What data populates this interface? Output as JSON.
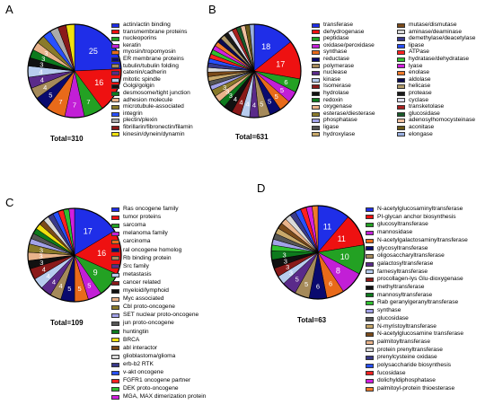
{
  "chart_data": [
    {
      "type": "pie",
      "panel": "A",
      "total_label": "Total=310",
      "start_deg": 90,
      "slices": [
        {
          "name": "actin/actin binding",
          "value": 25,
          "color": "#1f2ee8",
          "label": "25"
        },
        {
          "name": "transmembrane proteins",
          "value": 16,
          "color": "#ee1111",
          "label": "16"
        },
        {
          "name": "nucleoporins",
          "value": 7,
          "color": "#23a123",
          "label": "7"
        },
        {
          "name": "keratin",
          "value": 7,
          "color": "#c21fd6",
          "label": "7"
        },
        {
          "name": "myosin/tropomyosin",
          "value": 7,
          "color": "#e86a1a",
          "label": "7"
        },
        {
          "name": "ER membrane proteins",
          "value": 5,
          "color": "#0a0a6e",
          "label": "5"
        },
        {
          "name": "tubulin/tubulin folding",
          "value": 4,
          "color": "#a58a5a",
          "label": "4"
        },
        {
          "name": "catenin/cadherin",
          "value": 4,
          "color": "#5a2a8a",
          "label": "4"
        },
        {
          "name": "mitotic spindle",
          "value": 4,
          "color": "#b7ccee",
          "label": "4"
        },
        {
          "name": "Golgi/golgin",
          "value": 3,
          "color": "#111111",
          "label": "3"
        },
        {
          "name": "desmosome/tight junction",
          "value": 3,
          "color": "#0d7a1d",
          "label": "3"
        },
        {
          "name": "adhesion molecule",
          "value": 3,
          "color": "#e9b38a",
          "label": "3"
        },
        {
          "name": "microtubule-associated",
          "value": 3,
          "color": "#8a7a2a",
          "label": ""
        },
        {
          "name": "integrin",
          "value": 3,
          "color": "#2850ff",
          "label": ""
        },
        {
          "name": "plectin/plexin",
          "value": 3,
          "color": "#aaaaaa",
          "label": ""
        },
        {
          "name": "fibrillarin/fibronectin/filamin",
          "value": 3,
          "color": "#8a1a1a",
          "label": ""
        },
        {
          "name": "kinesin/dynein/dynamin",
          "value": 3,
          "color": "#f0e010",
          "label": ""
        }
      ]
    },
    {
      "type": "pie",
      "panel": "B",
      "total_label": "Total=631",
      "start_deg": 90,
      "slices": [
        {
          "name": "transferase",
          "value": 18,
          "color": "#1f2ee8",
          "label": "18"
        },
        {
          "name": "dehydrogenase",
          "value": 17,
          "color": "#ee1111",
          "label": "17"
        },
        {
          "name": "peptidase",
          "value": 6,
          "color": "#23a123",
          "label": "6"
        },
        {
          "name": "oxidase/peroxidase",
          "value": 5,
          "color": "#c21fd6",
          "label": "5"
        },
        {
          "name": "synthase",
          "value": 5,
          "color": "#e86a1a",
          "label": "5"
        },
        {
          "name": "reductase",
          "value": 5,
          "color": "#0a0a6e",
          "label": "5"
        },
        {
          "name": "polymerase",
          "value": 5,
          "color": "#a58a5a",
          "label": "5"
        },
        {
          "name": "nuclease",
          "value": 4,
          "color": "#5a2a8a",
          "label": "4"
        },
        {
          "name": "kinase",
          "value": 4,
          "color": "#b7ccee",
          "label": "4"
        },
        {
          "name": "Isomerase",
          "value": 4,
          "color": "#8a1a1a",
          "label": "4"
        },
        {
          "name": "hydrolase",
          "value": 4,
          "color": "#111111",
          "label": "4"
        },
        {
          "name": "redoxin",
          "value": 3,
          "color": "#0d7a1d",
          "label": "3"
        },
        {
          "name": "oxygenase",
          "value": 3,
          "color": "#e9b38a",
          "label": "3"
        },
        {
          "name": "esterase/diesterase",
          "value": 3,
          "color": "#8a7a2a",
          "label": "3"
        },
        {
          "name": "phosphatase",
          "value": 2,
          "color": "#a2a2e8",
          "label": ""
        },
        {
          "name": "ligase",
          "value": 2,
          "color": "#555555",
          "label": ""
        },
        {
          "name": "hydroxylase",
          "value": 2,
          "color": "#c8a86a",
          "label": ""
        },
        {
          "name": "mutase/dismutase",
          "value": 2,
          "color": "#7a4a1a",
          "label": ""
        },
        {
          "name": "aminase/deaminase",
          "value": 2,
          "color": "#d9d9d9",
          "label": ""
        },
        {
          "name": "demethylase/deacetylase",
          "value": 2,
          "color": "#3a3a8a",
          "label": ""
        },
        {
          "name": "lipase",
          "value": 2,
          "color": "#2850ff",
          "label": ""
        },
        {
          "name": "ATPase",
          "value": 2,
          "color": "#ff2020",
          "label": ""
        },
        {
          "name": "hydratase/dehydratase",
          "value": 2,
          "color": "#30c030",
          "label": ""
        },
        {
          "name": "lyase",
          "value": 2,
          "color": "#d21fe0",
          "label": ""
        },
        {
          "name": "enolase",
          "value": 2,
          "color": "#f07a2a",
          "label": ""
        },
        {
          "name": "aldolase",
          "value": 2,
          "color": "#0a0a50",
          "label": ""
        },
        {
          "name": "helicase",
          "value": 2,
          "color": "#b09a6a",
          "label": ""
        },
        {
          "name": "protease",
          "value": 2,
          "color": "#1a1a1a",
          "label": ""
        },
        {
          "name": "cyclase",
          "value": 2,
          "color": "#e0e0f0",
          "label": ""
        },
        {
          "name": "transketolase",
          "value": 2,
          "color": "#aa2020",
          "label": ""
        },
        {
          "name": "glucosidase",
          "value": 2,
          "color": "#1a5a2a",
          "label": ""
        },
        {
          "name": "adenosylhomocysteinase",
          "value": 2,
          "color": "#f0c0a0",
          "label": ""
        },
        {
          "name": "aconitase",
          "value": 2,
          "color": "#6a5a1a",
          "label": ""
        },
        {
          "name": "elongase",
          "value": 2,
          "color": "#9ab0e0",
          "label": ""
        }
      ]
    },
    {
      "type": "pie",
      "panel": "C",
      "total_label": "Total=109",
      "start_deg": 90,
      "slices": [
        {
          "name": "Ras oncogene family",
          "value": 17,
          "color": "#1f2ee8",
          "label": "17"
        },
        {
          "name": "tumor proteins",
          "value": 16,
          "color": "#ee1111",
          "label": "16"
        },
        {
          "name": "sarcoma",
          "value": 9,
          "color": "#23a123",
          "label": "9"
        },
        {
          "name": "melanoma family",
          "value": 5,
          "color": "#c21fd6",
          "label": "5"
        },
        {
          "name": "carcinoma",
          "value": 5,
          "color": "#e86a1a",
          "label": "5"
        },
        {
          "name": "ral oncogene homolog",
          "value": 5,
          "color": "#0a0a6e",
          "label": "5"
        },
        {
          "name": "Rb binding protein",
          "value": 4,
          "color": "#a58a5a",
          "label": "4"
        },
        {
          "name": "Src family",
          "value": 4,
          "color": "#5a2a8a",
          "label": "4"
        },
        {
          "name": "metastasis",
          "value": 4,
          "color": "#b7ccee",
          "label": "4"
        },
        {
          "name": "cancer related",
          "value": 4,
          "color": "#8a1a1a",
          "label": "4"
        },
        {
          "name": "myeloid/lymphoid",
          "value": 3,
          "color": "#111111",
          "label": "3"
        },
        {
          "name": "Myc associated",
          "value": 3,
          "color": "#e9b38a",
          "label": "3"
        },
        {
          "name": "Cbl proto-oncogene",
          "value": 3,
          "color": "#8a7a2a",
          "label": "3"
        },
        {
          "name": "SET nuclear proto-oncogene",
          "value": 2,
          "color": "#a2a2e8",
          "label": ""
        },
        {
          "name": "jun proto-oncogene",
          "value": 2,
          "color": "#555555",
          "label": ""
        },
        {
          "name": "huntingtin",
          "value": 2,
          "color": "#0d7a1d",
          "label": ""
        },
        {
          "name": "BRCA",
          "value": 2,
          "color": "#f0e010",
          "label": ""
        },
        {
          "name": "abl interactor",
          "value": 2,
          "color": "#7a4a1a",
          "label": ""
        },
        {
          "name": "glioblastoma/glioma",
          "value": 2,
          "color": "#d9d9d9",
          "label": ""
        },
        {
          "name": "erb-b2 RTK",
          "value": 2,
          "color": "#3a3a8a",
          "label": ""
        },
        {
          "name": "v-akt oncogene",
          "value": 2,
          "color": "#2850ff",
          "label": ""
        },
        {
          "name": "FGFR1 oncogene partner",
          "value": 2,
          "color": "#ff2020",
          "label": ""
        },
        {
          "name": "DEK proto-oncogene",
          "value": 2,
          "color": "#30c030",
          "label": ""
        },
        {
          "name": "MGA, MAX dimerization protein",
          "value": 2,
          "color": "#d21fe0",
          "label": ""
        }
      ]
    },
    {
      "type": "pie",
      "panel": "D",
      "total_label": "Total=63",
      "start_deg": 90,
      "slices": [
        {
          "name": "N-acetylglucosaminyltransferase",
          "value": 11,
          "color": "#1f2ee8",
          "label": "11"
        },
        {
          "name": "PI-glycan anchor biosynthesis",
          "value": 11,
          "color": "#ee1111",
          "label": "11"
        },
        {
          "name": "glucosyltransferase",
          "value": 10,
          "color": "#23a123",
          "label": "10"
        },
        {
          "name": "mannosidase",
          "value": 8,
          "color": "#c21fd6",
          "label": "8"
        },
        {
          "name": "N-acetylgalactosaminyltransferase",
          "value": 6,
          "color": "#e86a1a",
          "label": "6"
        },
        {
          "name": "glycosyltransferase",
          "value": 6,
          "color": "#0a0a6e",
          "label": "6"
        },
        {
          "name": "oligosaccharyltransferase",
          "value": 5,
          "color": "#a58a5a",
          "label": "5"
        },
        {
          "name": "galactosyltransferase",
          "value": 5,
          "color": "#5a2a8a",
          "label": "5"
        },
        {
          "name": "farnesyltransferase",
          "value": 3,
          "color": "#b7ccee",
          "label": "3"
        },
        {
          "name": "procollagen-lys Glu-dioxygenase",
          "value": 3,
          "color": "#8a1a1a",
          "label": "3"
        },
        {
          "name": "methyltransferase",
          "value": 3,
          "color": "#111111",
          "label": "3"
        },
        {
          "name": "mannosyltransferase",
          "value": 3,
          "color": "#0d7a1d",
          "label": "3"
        },
        {
          "name": "Rab geranylgeranyltransferase",
          "value": 2,
          "color": "#30c030",
          "label": ""
        },
        {
          "name": "synthase",
          "value": 2,
          "color": "#a2a2e8",
          "label": ""
        },
        {
          "name": "glucosidase",
          "value": 2,
          "color": "#555555",
          "label": ""
        },
        {
          "name": "N-myristoyltransferase",
          "value": 2,
          "color": "#c8a86a",
          "label": ""
        },
        {
          "name": "N-acetylglucosamine transferase",
          "value": 2,
          "color": "#7a4a1a",
          "label": ""
        },
        {
          "name": "palmitoyltransferase",
          "value": 2,
          "color": "#e9b38a",
          "label": ""
        },
        {
          "name": "protein prenyltransferase",
          "value": 2,
          "color": "#d9d9d9",
          "label": ""
        },
        {
          "name": "prenylcysteine oxidase",
          "value": 2,
          "color": "#3a3a8a",
          "label": ""
        },
        {
          "name": "polysaccharide biosynthesis",
          "value": 2,
          "color": "#2850ff",
          "label": ""
        },
        {
          "name": "fucosidase",
          "value": 2,
          "color": "#ff2020",
          "label": ""
        },
        {
          "name": "dolichyldiphosphatase",
          "value": 2,
          "color": "#d21fe0",
          "label": ""
        },
        {
          "name": "palmitoyl-protein thioesterase",
          "value": 2,
          "color": "#f07a2a",
          "label": ""
        }
      ]
    }
  ]
}
